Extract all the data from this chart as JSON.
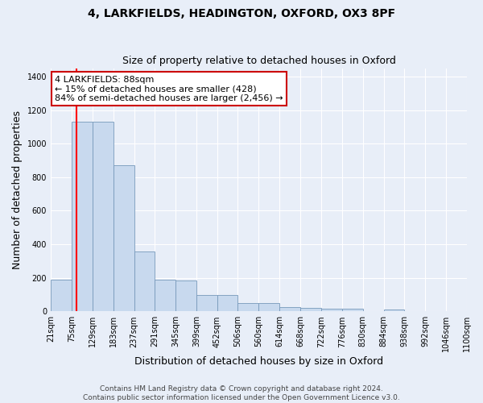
{
  "title": "4, LARKFIELDS, HEADINGTON, OXFORD, OX3 8PF",
  "subtitle": "Size of property relative to detached houses in Oxford",
  "xlabel": "Distribution of detached houses by size in Oxford",
  "ylabel": "Number of detached properties",
  "bar_color": "#c8d9ee",
  "bar_edge_color": "#7799bb",
  "bar_heights": [
    190,
    1130,
    1130,
    870,
    355,
    190,
    185,
    100,
    100,
    50,
    50,
    25,
    20,
    15,
    15,
    0,
    10,
    0,
    0,
    0,
    0
  ],
  "bin_edges": [
    21,
    75,
    129,
    183,
    237,
    291,
    345,
    399,
    452,
    506,
    560,
    614,
    668,
    722,
    776,
    830,
    884,
    938,
    992,
    1046,
    1100
  ],
  "tick_labels": [
    "21sqm",
    "75sqm",
    "129sqm",
    "183sqm",
    "237sqm",
    "291sqm",
    "345sqm",
    "399sqm",
    "452sqm",
    "506sqm",
    "560sqm",
    "614sqm",
    "668sqm",
    "722sqm",
    "776sqm",
    "830sqm",
    "884sqm",
    "938sqm",
    "992sqm",
    "1046sqm",
    "1100sqm"
  ],
  "red_line_x": 88,
  "annotation_line1": "4 LARKFIELDS: 88sqm",
  "annotation_line2": "← 15% of detached houses are smaller (428)",
  "annotation_line3": "84% of semi-detached houses are larger (2,456) →",
  "annotation_box_color": "#ffffff",
  "annotation_box_edge_color": "#cc0000",
  "figure_bg_color": "#e8eef8",
  "plot_bg_color": "#e8eef8",
  "ylim": [
    0,
    1450
  ],
  "yticks": [
    0,
    200,
    400,
    600,
    800,
    1000,
    1200,
    1400
  ],
  "footer_text": "Contains HM Land Registry data © Crown copyright and database right 2024.\nContains public sector information licensed under the Open Government Licence v3.0.",
  "title_fontsize": 10,
  "subtitle_fontsize": 9,
  "axis_label_fontsize": 9,
  "tick_fontsize": 7,
  "annotation_fontsize": 8,
  "footer_fontsize": 6.5
}
